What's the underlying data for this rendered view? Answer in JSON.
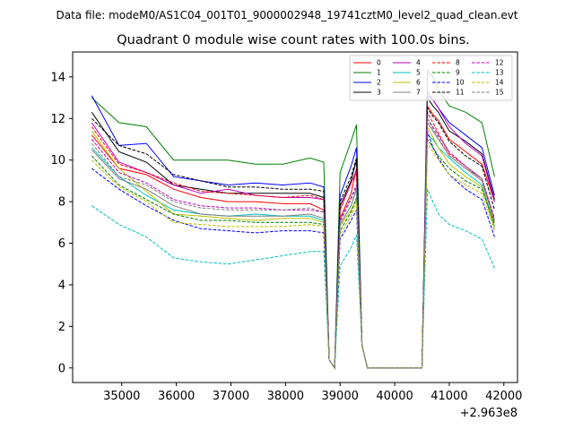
{
  "chart_data": {
    "type": "line",
    "suptitle": "Data file: modeM0/AS1C04_001T01_9000002948_19741cztM0_level2_quad_clean.evt",
    "title": "Quadrant 0 module wise count rates with 100.0s bins.",
    "xlabel": "",
    "ylabel": "",
    "offset_text": "+2.963e8",
    "xlim": [
      34100,
      42250
    ],
    "ylim": [
      -0.7,
      15.2
    ],
    "x_ticks": [
      35000,
      36000,
      37000,
      38000,
      39000,
      40000,
      41000,
      42000
    ],
    "x_tick_labels": [
      "35000",
      "36000",
      "37000",
      "38000",
      "39000",
      "40000",
      "41000",
      "42000"
    ],
    "y_ticks": [
      0,
      2,
      4,
      6,
      8,
      10,
      12,
      14
    ],
    "y_tick_labels": [
      "0",
      "2",
      "4",
      "6",
      "8",
      "10",
      "12",
      "14"
    ],
    "x": [
      34450,
      34950,
      35450,
      35950,
      36450,
      36950,
      37450,
      37950,
      38450,
      38700,
      38800,
      38900,
      39000,
      39200,
      39300,
      39400,
      39500,
      39600,
      40050,
      40500,
      40600,
      40700,
      40800,
      41000,
      41300,
      41600,
      41830
    ],
    "series": [
      {
        "name": "0",
        "color": "#ff0000",
        "dash": "solid",
        "values": [
          11.2,
          9.6,
          9.3,
          8.6,
          8.2,
          8.0,
          8.0,
          7.9,
          7.9,
          7.6,
          0.4,
          0.0,
          7.2,
          8.4,
          9.6,
          1.1,
          0.0,
          0.0,
          0.0,
          0.0,
          12.6,
          12.2,
          11.9,
          11.0,
          10.4,
          9.8,
          8.0
        ]
      },
      {
        "name": "1",
        "color": "#008000",
        "dash": "solid",
        "values": [
          13.0,
          11.8,
          11.6,
          10.0,
          10.0,
          10.0,
          9.8,
          9.8,
          10.1,
          9.9,
          0.4,
          0.0,
          9.4,
          10.9,
          11.7,
          1.1,
          0.0,
          0.0,
          0.0,
          0.0,
          14.3,
          14.0,
          13.4,
          12.6,
          12.3,
          11.8,
          9.2
        ]
      },
      {
        "name": "2",
        "color": "#0000ff",
        "dash": "solid",
        "values": [
          13.1,
          10.7,
          10.8,
          9.2,
          9.0,
          8.8,
          8.9,
          8.8,
          8.9,
          8.7,
          0.4,
          0.0,
          8.3,
          9.7,
          10.6,
          1.1,
          0.0,
          0.0,
          0.0,
          0.0,
          13.1,
          12.9,
          12.5,
          11.8,
          11.2,
          10.6,
          8.3
        ]
      },
      {
        "name": "3",
        "color": "#000000",
        "dash": "solid",
        "values": [
          12.3,
          10.4,
          9.9,
          8.8,
          8.6,
          8.4,
          8.4,
          8.4,
          8.4,
          8.2,
          0.4,
          0.0,
          7.8,
          9.0,
          10.0,
          1.1,
          0.0,
          0.0,
          0.0,
          0.0,
          13.0,
          12.6,
          12.3,
          11.4,
          10.9,
          10.3,
          8.1
        ]
      },
      {
        "name": "4",
        "color": "#bf00bf",
        "dash": "solid",
        "values": [
          11.8,
          9.9,
          9.4,
          8.8,
          8.4,
          8.6,
          8.3,
          8.2,
          8.2,
          8.1,
          0.4,
          0.0,
          7.6,
          8.9,
          9.5,
          1.1,
          0.0,
          0.0,
          0.0,
          0.0,
          13.3,
          12.9,
          12.5,
          11.6,
          10.8,
          10.2,
          8.0
        ]
      },
      {
        "name": "5",
        "color": "#00bfbf",
        "dash": "solid",
        "values": [
          10.6,
          9.2,
          8.3,
          7.6,
          7.4,
          7.3,
          7.4,
          7.3,
          7.3,
          7.1,
          0.4,
          0.0,
          6.9,
          7.8,
          8.6,
          1.1,
          0.0,
          0.0,
          0.0,
          0.0,
          11.2,
          11.0,
          10.6,
          10.1,
          9.4,
          8.8,
          6.8
        ]
      },
      {
        "name": "6",
        "color": "#bfbf00",
        "dash": "solid",
        "values": [
          11.4,
          9.6,
          8.5,
          7.4,
          7.3,
          7.2,
          7.1,
          7.2,
          7.2,
          7.0,
          0.4,
          0.0,
          6.8,
          7.6,
          8.1,
          1.1,
          0.0,
          0.0,
          0.0,
          0.0,
          11.6,
          11.1,
          10.6,
          9.8,
          9.2,
          8.7,
          6.7
        ]
      },
      {
        "name": "7",
        "color": "#808080",
        "dash": "solid",
        "values": [
          10.5,
          9.1,
          8.6,
          7.8,
          7.4,
          7.3,
          7.3,
          7.3,
          7.4,
          7.2,
          0.4,
          0.0,
          6.9,
          7.8,
          8.6,
          1.1,
          0.0,
          0.0,
          0.0,
          0.0,
          11.8,
          11.4,
          11.0,
          10.2,
          9.6,
          9.0,
          7.0
        ]
      },
      {
        "name": "8",
        "color": "#ff0000",
        "dash": "dashed",
        "values": [
          11.6,
          9.8,
          9.4,
          8.9,
          8.5,
          8.4,
          8.3,
          8.2,
          8.3,
          8.1,
          0.4,
          0.0,
          7.6,
          8.9,
          9.4,
          1.1,
          0.0,
          0.0,
          0.0,
          0.0,
          12.3,
          11.8,
          11.3,
          10.3,
          9.7,
          9.1,
          7.1
        ]
      },
      {
        "name": "9",
        "color": "#008000",
        "dash": "dashed",
        "values": [
          10.2,
          8.8,
          8.1,
          7.4,
          7.1,
          7.1,
          7.0,
          7.0,
          7.0,
          6.9,
          0.4,
          0.0,
          6.6,
          7.5,
          8.2,
          1.1,
          0.0,
          0.0,
          0.0,
          0.0,
          11.0,
          10.6,
          10.2,
          9.6,
          9.0,
          8.6,
          6.9
        ]
      },
      {
        "name": "10",
        "color": "#0000ff",
        "dash": "dashed",
        "values": [
          9.6,
          8.6,
          7.8,
          7.1,
          6.7,
          6.6,
          6.5,
          6.6,
          6.6,
          6.5,
          0.4,
          0.0,
          6.2,
          7.1,
          7.6,
          1.1,
          0.0,
          0.0,
          0.0,
          0.0,
          11.4,
          10.6,
          10.1,
          9.3,
          8.6,
          8.1,
          6.3
        ]
      },
      {
        "name": "11",
        "color": "#000000",
        "dash": "dashed",
        "values": [
          12.0,
          10.7,
          10.3,
          9.3,
          9.0,
          8.7,
          8.7,
          8.6,
          8.6,
          8.5,
          0.4,
          0.0,
          8.0,
          9.2,
          10.1,
          1.1,
          0.0,
          0.0,
          0.0,
          0.0,
          12.5,
          12.1,
          11.8,
          10.9,
          10.2,
          9.7,
          7.6
        ]
      },
      {
        "name": "12",
        "color": "#bf00bf",
        "dash": "dashed",
        "values": [
          11.0,
          9.4,
          8.9,
          8.1,
          7.8,
          7.7,
          7.7,
          7.6,
          7.6,
          7.5,
          0.4,
          0.0,
          7.1,
          8.2,
          8.8,
          1.1,
          0.0,
          0.0,
          0.0,
          0.0,
          12.0,
          11.6,
          11.2,
          10.4,
          9.7,
          9.1,
          7.2
        ]
      },
      {
        "name": "13",
        "color": "#00bfbf",
        "dash": "dashed",
        "values": [
          7.8,
          6.9,
          6.3,
          5.3,
          5.1,
          5.0,
          5.2,
          5.4,
          5.6,
          5.6,
          0.4,
          0.0,
          4.9,
          5.8,
          6.4,
          1.1,
          0.0,
          0.0,
          0.0,
          0.0,
          8.6,
          8.0,
          7.4,
          6.9,
          6.6,
          6.2,
          4.8
        ]
      },
      {
        "name": "14",
        "color": "#bfbf00",
        "dash": "dashed",
        "values": [
          10.0,
          8.7,
          8.0,
          7.0,
          6.9,
          6.8,
          6.8,
          6.8,
          6.9,
          6.8,
          0.4,
          0.0,
          6.4,
          7.3,
          8.0,
          1.1,
          0.0,
          0.0,
          0.0,
          0.0,
          10.8,
          10.4,
          10.0,
          9.3,
          8.8,
          8.4,
          6.6
        ]
      },
      {
        "name": "15",
        "color": "#808080",
        "dash": "dashed",
        "values": [
          10.8,
          9.2,
          8.8,
          8.0,
          7.7,
          7.6,
          7.6,
          7.6,
          7.7,
          7.5,
          0.4,
          0.0,
          7.0,
          8.1,
          8.7,
          1.1,
          0.0,
          0.0,
          0.0,
          0.0,
          12.0,
          11.5,
          11.1,
          10.2,
          9.6,
          9.1,
          7.1
        ]
      }
    ],
    "legend": {
      "position": "top-right",
      "columns": 4
    }
  }
}
